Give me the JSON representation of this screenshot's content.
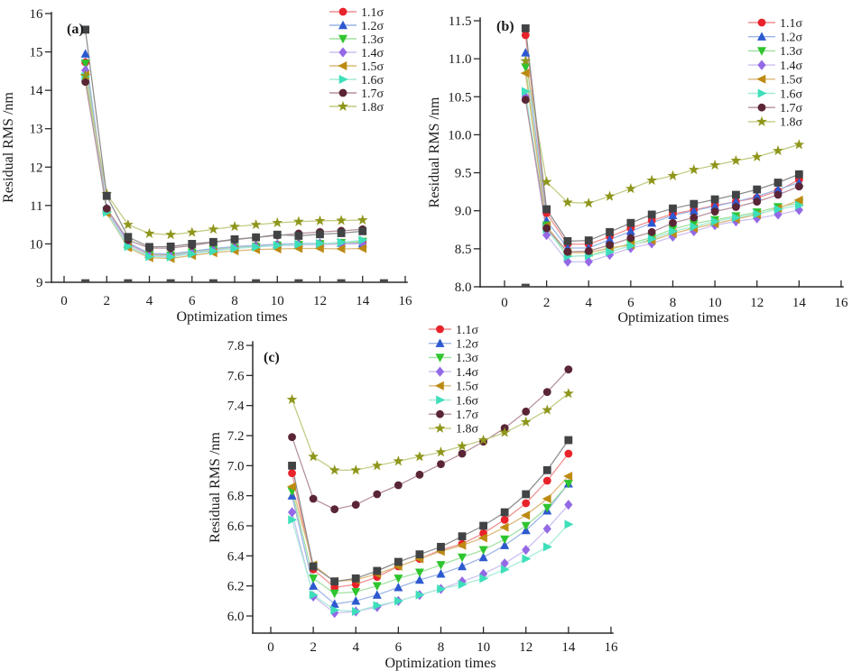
{
  "figure": {
    "background": "#ffffff",
    "text_color": "#1a1a1a",
    "axis_color": "#2b2b2b"
  },
  "chart_data": [
    {
      "id": "a",
      "tag": "(a)",
      "type": "line",
      "xlabel": "Optimization times",
      "ylabel": "Residual RMS /nm",
      "legend_position": "top-right",
      "xticks": [
        0,
        2,
        4,
        6,
        8,
        10,
        12,
        14,
        16
      ],
      "xtick_labels": [
        "0",
        "2",
        "4",
        "6",
        "8",
        "10",
        "12",
        "14",
        "16"
      ],
      "yticks": [
        9,
        10,
        11,
        12,
        13,
        14,
        15,
        16
      ],
      "ytick_labels": [
        "9",
        "10",
        "11",
        "12",
        "13",
        "14",
        "15",
        "16"
      ],
      "xlim": [
        -0.6,
        16.2
      ],
      "ylim": [
        9,
        16
      ],
      "x": [
        1,
        2,
        3,
        4,
        5,
        6,
        7,
        8,
        9,
        10,
        11,
        12,
        13,
        14
      ],
      "baseline_marks": [
        1,
        3,
        5,
        7,
        9,
        11,
        13,
        15
      ],
      "series": [
        {
          "name": "1.1σ",
          "marker": "circle",
          "marker_color": "#e8232b",
          "line_color": "#ef8d8d",
          "in_legend": true,
          "values": [
            14.73,
            10.9,
            10.01,
            9.73,
            9.72,
            9.79,
            9.86,
            9.92,
            9.95,
            9.98,
            10.0,
            10.01,
            10.02,
            10.04
          ]
        },
        {
          "name": "1.2σ",
          "marker": "triangle-up",
          "marker_color": "#2d59d0",
          "line_color": "#9bb4e6",
          "in_legend": true,
          "values": [
            14.95,
            10.93,
            10.03,
            9.75,
            9.74,
            9.81,
            9.88,
            9.93,
            9.96,
            9.99,
            10.01,
            10.02,
            10.02,
            10.01
          ]
        },
        {
          "name": "1.3σ",
          "marker": "triangle-down",
          "marker_color": "#2ec52e",
          "line_color": "#9fe09f",
          "in_legend": true,
          "values": [
            14.7,
            10.86,
            9.97,
            9.71,
            9.7,
            9.78,
            9.85,
            9.9,
            9.93,
            9.96,
            9.98,
            10.0,
            10.03,
            10.06
          ]
        },
        {
          "name": "1.4σ",
          "marker": "diamond",
          "marker_color": "#9469e6",
          "line_color": "#cdbff0",
          "in_legend": true,
          "values": [
            14.52,
            10.88,
            9.99,
            9.69,
            9.68,
            9.76,
            9.83,
            9.89,
            9.92,
            9.95,
            9.97,
            9.98,
            9.99,
            10.0
          ]
        },
        {
          "name": "1.5σ",
          "marker": "triangle-left",
          "marker_color": "#bd8a12",
          "line_color": "#dcb877",
          "in_legend": true,
          "values": [
            14.4,
            10.8,
            9.9,
            9.64,
            9.62,
            9.7,
            9.77,
            9.82,
            9.85,
            9.87,
            9.88,
            9.88,
            9.87,
            9.88
          ]
        },
        {
          "name": "1.6σ",
          "marker": "triangle-right",
          "marker_color": "#3ddfba",
          "line_color": "#a5ecd8",
          "in_legend": true,
          "values": [
            14.36,
            10.82,
            9.93,
            9.67,
            9.66,
            9.74,
            9.81,
            9.88,
            9.92,
            9.96,
            9.99,
            10.01,
            10.04,
            10.1
          ]
        },
        {
          "name": "1.7σ",
          "marker": "circle",
          "marker_color": "#5a2535",
          "line_color": "#b5909b",
          "in_legend": true,
          "values": [
            14.22,
            10.92,
            10.1,
            9.89,
            9.89,
            9.96,
            10.04,
            10.11,
            10.17,
            10.22,
            10.27,
            10.31,
            10.34,
            10.38
          ]
        },
        {
          "name": "1.8σ",
          "marker": "star",
          "marker_color": "#8e961b",
          "line_color": "#c2ca80",
          "in_legend": true,
          "values": [
            14.38,
            11.3,
            10.5,
            10.27,
            10.24,
            10.3,
            10.38,
            10.45,
            10.5,
            10.55,
            10.58,
            10.6,
            10.61,
            10.62
          ]
        },
        {
          "name": "",
          "marker": "square",
          "marker_color": "#414345",
          "line_color": "#8c8c8c",
          "in_legend": false,
          "values": [
            15.58,
            11.25,
            10.18,
            9.92,
            9.93,
            10.0,
            10.05,
            10.12,
            10.17,
            10.24,
            10.21,
            10.25,
            10.28,
            10.33
          ]
        }
      ]
    },
    {
      "id": "b",
      "tag": "(b)",
      "type": "line",
      "xlabel": "Optimization times",
      "ylabel": "Residual RMS /nm",
      "legend_position": "top-right",
      "xticks": [
        0,
        2,
        4,
        6,
        8,
        10,
        12,
        14,
        16
      ],
      "xtick_labels": [
        "0",
        "2",
        "4",
        "6",
        "8",
        "10",
        "12",
        "14",
        "16"
      ],
      "yticks": [
        8.0,
        8.5,
        9.0,
        9.5,
        10.0,
        10.5,
        11.0,
        11.5
      ],
      "ytick_labels": [
        "8.0",
        "8.5",
        "9.0",
        "9.5",
        "10.0",
        "10.5",
        "11.0",
        "11.5"
      ],
      "xlim": [
        -1.2,
        16.1
      ],
      "ylim": [
        8.0,
        11.5
      ],
      "x": [
        1,
        2,
        3,
        4,
        5,
        6,
        7,
        8,
        9,
        10,
        11,
        12,
        13,
        14
      ],
      "baseline_marks": [
        1
      ],
      "series": [
        {
          "name": "1.1σ",
          "marker": "circle",
          "marker_color": "#e8232b",
          "line_color": "#ef8d8d",
          "in_legend": true,
          "values": [
            11.31,
            8.97,
            8.56,
            8.56,
            8.66,
            8.77,
            8.87,
            8.96,
            9.01,
            9.07,
            9.12,
            9.17,
            9.26,
            9.41
          ]
        },
        {
          "name": "1.2σ",
          "marker": "triangle-up",
          "marker_color": "#2d59d0",
          "line_color": "#9bb4e6",
          "in_legend": true,
          "values": [
            11.08,
            8.87,
            8.51,
            8.51,
            8.62,
            8.73,
            8.84,
            8.94,
            9.0,
            9.06,
            9.12,
            9.19,
            9.28,
            9.37
          ]
        },
        {
          "name": "1.3σ",
          "marker": "triangle-down",
          "marker_color": "#2ec52e",
          "line_color": "#9fe09f",
          "in_legend": true,
          "values": [
            10.89,
            8.81,
            8.4,
            8.41,
            8.49,
            8.57,
            8.65,
            8.76,
            8.83,
            8.88,
            8.93,
            8.98,
            9.05,
            9.1
          ]
        },
        {
          "name": "1.4σ",
          "marker": "diamond",
          "marker_color": "#9469e6",
          "line_color": "#cdbff0",
          "in_legend": true,
          "values": [
            10.5,
            8.68,
            8.33,
            8.33,
            8.42,
            8.51,
            8.57,
            8.66,
            8.73,
            8.81,
            8.86,
            8.9,
            8.95,
            9.01
          ]
        },
        {
          "name": "1.5σ",
          "marker": "triangle-left",
          "marker_color": "#bd8a12",
          "line_color": "#dcb877",
          "in_legend": true,
          "values": [
            10.81,
            8.8,
            8.45,
            8.45,
            8.51,
            8.55,
            8.61,
            8.7,
            8.77,
            8.83,
            8.89,
            8.95,
            9.03,
            9.14
          ]
        },
        {
          "name": "1.6σ",
          "marker": "triangle-right",
          "marker_color": "#3ddfba",
          "line_color": "#a5ecd8",
          "in_legend": true,
          "values": [
            10.57,
            8.76,
            8.4,
            8.41,
            8.46,
            8.54,
            8.63,
            8.73,
            8.79,
            8.86,
            8.91,
            8.96,
            9.02,
            9.07
          ]
        },
        {
          "name": "1.7σ",
          "marker": "circle",
          "marker_color": "#5a2535",
          "line_color": "#b5909b",
          "in_legend": true,
          "values": [
            10.46,
            8.77,
            8.46,
            8.47,
            8.55,
            8.64,
            8.72,
            8.84,
            8.91,
            8.99,
            9.05,
            9.12,
            9.21,
            9.32
          ]
        },
        {
          "name": "1.8σ",
          "marker": "star",
          "marker_color": "#8e961b",
          "line_color": "#c2ca80",
          "in_legend": true,
          "values": [
            10.97,
            9.38,
            9.11,
            9.1,
            9.19,
            9.29,
            9.4,
            9.46,
            9.54,
            9.6,
            9.66,
            9.71,
            9.79,
            9.87
          ]
        },
        {
          "name": "",
          "marker": "square",
          "marker_color": "#414345",
          "line_color": "#8c8c8c",
          "in_legend": false,
          "values": [
            11.4,
            9.02,
            8.6,
            8.61,
            8.72,
            8.84,
            8.95,
            9.03,
            9.09,
            9.15,
            9.21,
            9.28,
            9.37,
            9.48
          ]
        }
      ]
    },
    {
      "id": "c",
      "tag": "(c)",
      "type": "line",
      "xlabel": "Optimization times",
      "ylabel": "Residual RMS /nm",
      "legend_position": "top-center",
      "xticks": [
        0,
        2,
        4,
        6,
        8,
        10,
        12,
        14,
        16
      ],
      "xtick_labels": [
        "0",
        "2",
        "4",
        "6",
        "8",
        "10",
        "12",
        "14",
        "16"
      ],
      "yticks": [
        6.0,
        6.2,
        6.4,
        6.6,
        6.8,
        7.0,
        7.2,
        7.4,
        7.6,
        7.8
      ],
      "ytick_labels": [
        "6.0",
        "6.2",
        "6.4",
        "6.6",
        "6.8",
        "7.0",
        "7.2",
        "7.4",
        "7.6",
        "7.8"
      ],
      "xlim": [
        -0.9,
        16.1
      ],
      "ylim": [
        5.89,
        7.8
      ],
      "x": [
        1,
        2,
        3,
        4,
        5,
        6,
        7,
        8,
        9,
        10,
        11,
        12,
        13,
        14
      ],
      "baseline_marks": [],
      "series": [
        {
          "name": "1.1σ",
          "marker": "circle",
          "marker_color": "#e8232b",
          "line_color": "#ef8d8d",
          "in_legend": true,
          "values": [
            6.95,
            6.31,
            6.19,
            6.21,
            6.26,
            6.33,
            6.38,
            6.44,
            6.48,
            6.55,
            6.64,
            6.75,
            6.9,
            7.08
          ]
        },
        {
          "name": "1.2σ",
          "marker": "triangle-up",
          "marker_color": "#2d59d0",
          "line_color": "#9bb4e6",
          "in_legend": true,
          "values": [
            6.8,
            6.2,
            6.08,
            6.1,
            6.14,
            6.19,
            6.24,
            6.28,
            6.33,
            6.39,
            6.47,
            6.57,
            6.7,
            6.88
          ]
        },
        {
          "name": "1.3σ",
          "marker": "triangle-down",
          "marker_color": "#2ec52e",
          "line_color": "#9fe09f",
          "in_legend": true,
          "values": [
            6.83,
            6.25,
            6.15,
            6.16,
            6.2,
            6.25,
            6.29,
            6.34,
            6.39,
            6.44,
            6.51,
            6.6,
            6.72,
            6.88
          ]
        },
        {
          "name": "1.4σ",
          "marker": "diamond",
          "marker_color": "#9469e6",
          "line_color": "#cdbff0",
          "in_legend": true,
          "values": [
            6.69,
            6.13,
            6.02,
            6.03,
            6.06,
            6.1,
            6.14,
            6.18,
            6.23,
            6.28,
            6.35,
            6.44,
            6.58,
            6.74
          ]
        },
        {
          "name": "1.5σ",
          "marker": "triangle-left",
          "marker_color": "#bd8a12",
          "line_color": "#dcb877",
          "in_legend": true,
          "values": [
            6.86,
            6.34,
            6.23,
            6.24,
            6.28,
            6.33,
            6.38,
            6.43,
            6.47,
            6.52,
            6.59,
            6.67,
            6.78,
            6.93
          ]
        },
        {
          "name": "1.6σ",
          "marker": "triangle-right",
          "marker_color": "#3ddfba",
          "line_color": "#a5ecd8",
          "in_legend": true,
          "values": [
            6.64,
            6.14,
            6.04,
            6.03,
            6.07,
            6.1,
            6.14,
            6.18,
            6.21,
            6.25,
            6.31,
            6.38,
            6.46,
            6.61
          ]
        },
        {
          "name": "1.7σ",
          "marker": "circle",
          "marker_color": "#5a2535",
          "line_color": "#b5909b",
          "in_legend": true,
          "values": [
            7.19,
            6.78,
            6.71,
            6.74,
            6.81,
            6.87,
            6.94,
            7.01,
            7.08,
            7.16,
            7.25,
            7.36,
            7.49,
            7.64
          ]
        },
        {
          "name": "1.8σ",
          "marker": "star",
          "marker_color": "#8e961b",
          "line_color": "#c2ca80",
          "in_legend": true,
          "values": [
            7.44,
            7.06,
            6.97,
            6.97,
            7.0,
            7.03,
            7.06,
            7.09,
            7.13,
            7.17,
            7.22,
            7.29,
            7.37,
            7.48
          ]
        },
        {
          "name": "",
          "marker": "square",
          "marker_color": "#414345",
          "line_color": "#8c8c8c",
          "in_legend": false,
          "values": [
            7.0,
            6.33,
            6.23,
            6.25,
            6.3,
            6.36,
            6.41,
            6.46,
            6.53,
            6.6,
            6.69,
            6.81,
            6.97,
            7.17
          ]
        }
      ]
    }
  ]
}
